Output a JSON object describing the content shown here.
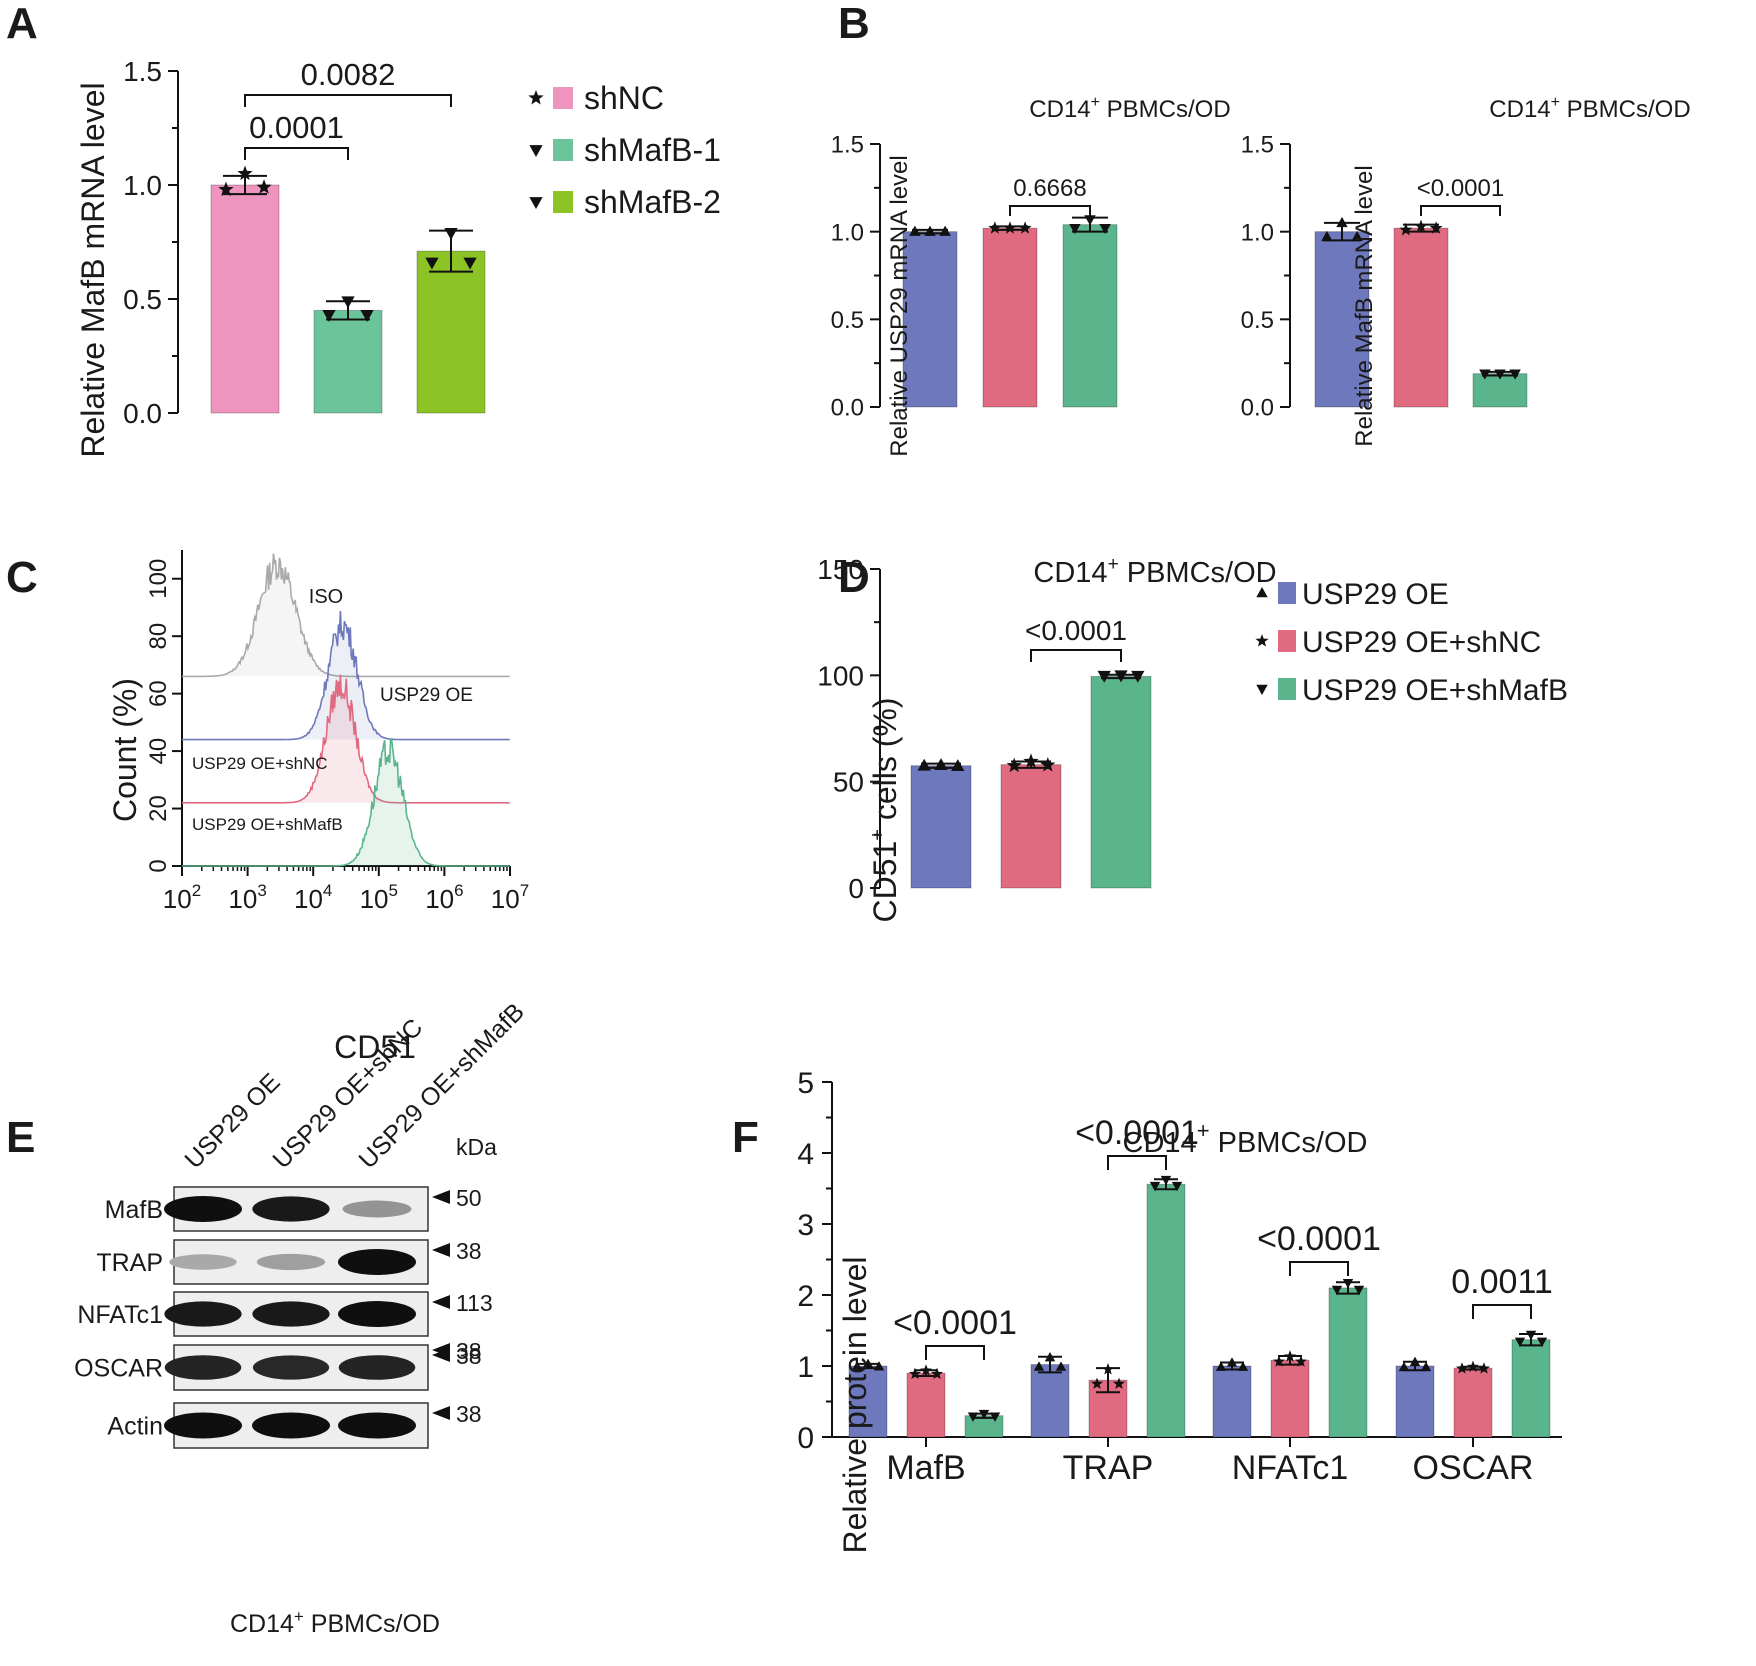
{
  "panels": {
    "A": {
      "label": "A"
    },
    "B": {
      "label": "B"
    },
    "C": {
      "label": "C"
    },
    "D": {
      "label": "D"
    },
    "E": {
      "label": "E"
    },
    "F": {
      "label": "F"
    }
  },
  "colors": {
    "shNC": "#ee94bf",
    "shMafB1": "#6cc49b",
    "shMafB2": "#8cc425",
    "oe": "#6e78bc",
    "oe_shNC": "#e06b81",
    "oe_shMafB": "#5bb58c",
    "iso": "#aaaaaa"
  },
  "chart_data": [
    {
      "panel": "A",
      "type": "bar",
      "categories": [
        "shNC",
        "shMafB-1",
        "shMafB-2"
      ],
      "values": [
        1.0,
        0.45,
        0.71
      ],
      "errors": [
        0.04,
        0.04,
        0.09
      ],
      "points": [
        [
          0.98,
          1.05,
          0.99
        ],
        [
          0.43,
          0.49,
          0.43
        ],
        [
          0.66,
          0.79,
          0.66
        ]
      ],
      "markers": [
        "star",
        "tri-down",
        "tri-down"
      ],
      "ylabel": "Relative MafB mRNA level",
      "ylim": [
        0,
        1.5
      ],
      "yticks": [
        "0.0",
        "0.5",
        "1.0",
        "1.5"
      ],
      "legend": [
        "shNC",
        "shMafB-1",
        "shMafB-2"
      ],
      "comparisons": [
        {
          "from": 0,
          "to": 1,
          "label": "0.0001"
        },
        {
          "from": 0,
          "to": 2,
          "label": "0.0082"
        }
      ]
    },
    {
      "panel": "B-left",
      "type": "bar",
      "title": "CD14+ PBMCs/OD",
      "categories": [
        "USP29 OE",
        "USP29 OE+shNC",
        "USP29 OE+shMafB"
      ],
      "values": [
        1.0,
        1.02,
        1.04
      ],
      "errors": [
        0.01,
        0.01,
        0.04
      ],
      "points": [
        [
          1.0,
          1.0,
          1.0
        ],
        [
          1.02,
          1.02,
          1.02
        ],
        [
          1.02,
          1.07,
          1.02
        ]
      ],
      "markers": [
        "tri-up",
        "star",
        "tri-down"
      ],
      "ylabel": "Relative USP29 mRNA level",
      "ylim": [
        0,
        1.5
      ],
      "yticks": [
        "0.0",
        "0.5",
        "1.0",
        "1.5"
      ],
      "comparisons": [
        {
          "from": 1,
          "to": 2,
          "label": "0.6668"
        }
      ]
    },
    {
      "panel": "B-right",
      "type": "bar",
      "title": "CD14+ PBMCs/OD",
      "categories": [
        "USP29 OE",
        "USP29 OE+shNC",
        "USP29 OE+shMafB"
      ],
      "values": [
        1.0,
        1.02,
        0.19
      ],
      "errors": [
        0.05,
        0.02,
        0.01
      ],
      "points": [
        [
          0.97,
          1.05,
          0.97
        ],
        [
          1.01,
          1.03,
          1.02
        ],
        [
          0.19,
          0.19,
          0.19
        ]
      ],
      "markers": [
        "tri-up",
        "star",
        "tri-down"
      ],
      "ylabel": "Relative MafB mRNA level",
      "ylim": [
        0,
        1.5
      ],
      "yticks": [
        "0.0",
        "0.5",
        "1.0",
        "1.5"
      ],
      "comparisons": [
        {
          "from": 1,
          "to": 2,
          "label": "<0.0001"
        }
      ]
    },
    {
      "panel": "C",
      "type": "histogram-overlay",
      "xlabel": "CD51",
      "ylabel": "Count  (%)",
      "xlog": true,
      "xlim_exp": [
        2,
        7
      ],
      "yticks": [
        "0",
        "20",
        "40",
        "60",
        "80",
        "100"
      ],
      "xtick_exps": [
        "2",
        "3",
        "4",
        "5",
        "6",
        "7"
      ],
      "xtick_base": "10",
      "series": [
        {
          "name": "ISO",
          "baseline": 66,
          "peak_log10": 3.45,
          "sigma": 0.28,
          "height": 39
        },
        {
          "name": "USP29 OE",
          "baseline": 44,
          "peak_log10": 4.45,
          "sigma": 0.22,
          "height": 40
        },
        {
          "name": "USP29 OE+shNC",
          "baseline": 22,
          "peak_log10": 4.42,
          "sigma": 0.22,
          "height": 41
        },
        {
          "name": "USP29 OE+shMafB",
          "baseline": 0,
          "peak_log10": 5.15,
          "sigma": 0.22,
          "height": 40
        }
      ]
    },
    {
      "panel": "D",
      "type": "bar",
      "title": "CD14+ PBMCs/OD",
      "categories": [
        "USP29 OE",
        "USP29 OE+shNC",
        "USP29 OE+shMafB"
      ],
      "values": [
        57.5,
        58.0,
        99.5
      ],
      "errors": [
        1.0,
        1.5,
        0.8
      ],
      "points": [
        [
          57.5,
          57.8,
          57.3
        ],
        [
          57.5,
          59.5,
          57.8
        ],
        [
          99.8,
          100.0,
          99.8
        ]
      ],
      "markers": [
        "tri-up",
        "star",
        "tri-down"
      ],
      "ylabel": "CD51+ cells (%)",
      "ylim": [
        0,
        150
      ],
      "yticks": [
        "0",
        "50",
        "100",
        "150"
      ],
      "legend": [
        "USP29 OE",
        "USP29 OE+shNC",
        "USP29 OE+shMafB"
      ],
      "comparisons": [
        {
          "from": 1,
          "to": 2,
          "label": "<0.0001"
        }
      ]
    },
    {
      "panel": "F",
      "type": "grouped-bar",
      "title": "CD14+ PBMCs/OD",
      "categories": [
        "MafB",
        "TRAP",
        "NFATc1",
        "OSCAR"
      ],
      "series": [
        {
          "values": [
            1.0,
            1.02,
            1.0,
            1.0
          ],
          "errors": [
            0.03,
            0.11,
            0.05,
            0.06
          ]
        },
        {
          "values": [
            0.9,
            0.8,
            1.08,
            0.97
          ],
          "errors": [
            0.04,
            0.17,
            0.06,
            0.02
          ]
        },
        {
          "values": [
            0.3,
            3.56,
            2.1,
            1.37
          ],
          "errors": [
            0.03,
            0.07,
            0.08,
            0.08
          ]
        }
      ],
      "markers": [
        "tri-up",
        "star",
        "tri-down"
      ],
      "ylabel": "Relative protein level",
      "ylim": [
        0,
        5
      ],
      "yticks": [
        "0",
        "1",
        "2",
        "3",
        "4",
        "5"
      ],
      "comparisons": [
        {
          "group": 0,
          "label": "<0.0001"
        },
        {
          "group": 1,
          "label": "<0.0001"
        },
        {
          "group": 2,
          "label": "<0.0001"
        },
        {
          "group": 3,
          "label": "0.0011"
        }
      ]
    }
  ],
  "blot": {
    "lanes": [
      "USP29 OE",
      "USP29 OE+shNC",
      "USP29 OE+shMafB"
    ],
    "kda_header": "kDa",
    "footer": "CD14",
    "footer_sup": "+",
    "footer_rest": " PBMCs/OD",
    "rows": [
      {
        "name": "MafB",
        "marker": "50",
        "intensity": [
          1.0,
          0.95,
          0.35
        ]
      },
      {
        "name": "TRAP",
        "marker": "38",
        "intensity": [
          0.25,
          0.3,
          1.0
        ]
      },
      {
        "name": "NFATc1",
        "marker": "113",
        "marker2": "38",
        "intensity": [
          0.95,
          0.95,
          1.0
        ]
      },
      {
        "name": "OSCAR",
        "marker": "38",
        "intensity": [
          0.9,
          0.88,
          0.9
        ]
      },
      {
        "name": "Actin",
        "marker": "38",
        "intensity": [
          1.0,
          1.0,
          1.0
        ]
      }
    ]
  },
  "title_parts": {
    "cd14": "CD14",
    "sup": "+",
    "rest": " PBMCs/OD",
    "cd51": "CD51",
    "cells": " cells (%)"
  }
}
